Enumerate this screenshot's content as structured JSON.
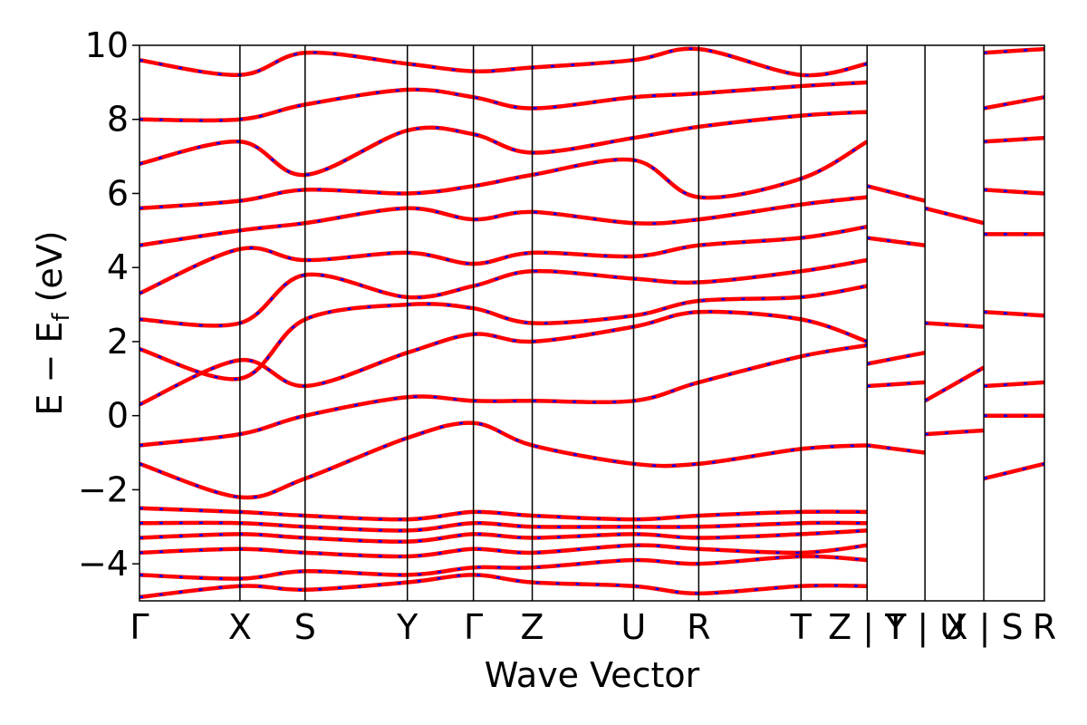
{
  "chart_data": {
    "type": "line",
    "title": "",
    "xlabel": "Wave Vector",
    "ylabel": "E − E",
    "ylabel_subscript": "f",
    "ylabel_unit": " (eV)",
    "ylim": [
      -5,
      10
    ],
    "yticks": [
      -4,
      -2,
      0,
      2,
      4,
      6,
      8,
      10
    ],
    "ytick_labels": [
      "−4",
      "−2",
      "0",
      "2",
      "4",
      "6",
      "8",
      "10"
    ],
    "grid": false,
    "legend": "none",
    "kpath": [
      {
        "label": "Γ",
        "k": 0.0
      },
      {
        "label": "X",
        "k": 1.11
      },
      {
        "label": "S",
        "k": 1.83
      },
      {
        "label": "Y",
        "k": 2.96
      },
      {
        "label": "Γ",
        "k": 3.69
      },
      {
        "label": "Z",
        "k": 4.34
      },
      {
        "label": "U",
        "k": 5.46
      },
      {
        "label": "R",
        "k": 6.18
      },
      {
        "label": "T",
        "k": 7.31
      },
      {
        "label": "Z | Y",
        "k": 8.04
      },
      {
        "label": "T | U",
        "k": 8.68
      },
      {
        "label": "X | S",
        "k": 9.33
      },
      {
        "label": "R",
        "k": 10.0
      }
    ],
    "xlim": [
      0,
      10.0
    ],
    "colors": {
      "solid": "#ff0000",
      "dashed": "#0000ff",
      "vlines": "#000000"
    },
    "series": [
      {
        "x": [
          0,
          1.11,
          1.83,
          2.96,
          3.69,
          4.34,
          5.46,
          6.18,
          7.31,
          8.04
        ],
        "y": [
          -4.9,
          -4.6,
          -4.7,
          -4.5,
          -4.3,
          -4.5,
          -4.6,
          -4.8,
          -4.6,
          -4.6
        ]
      },
      {
        "x": [
          0,
          1.11,
          1.83,
          2.96,
          3.69,
          4.34,
          5.46,
          6.18,
          7.31,
          8.04
        ],
        "y": [
          -4.3,
          -4.4,
          -4.2,
          -4.3,
          -4.1,
          -4.1,
          -3.9,
          -4.0,
          -3.8,
          -3.9
        ]
      },
      {
        "x": [
          0,
          1.11,
          1.83,
          2.96,
          3.69,
          4.34,
          5.46,
          6.18,
          7.31,
          8.04
        ],
        "y": [
          -3.7,
          -3.6,
          -3.7,
          -3.8,
          -3.6,
          -3.7,
          -3.5,
          -3.6,
          -3.7,
          -3.5
        ]
      },
      {
        "x": [
          0,
          1.11,
          1.83,
          2.96,
          3.69,
          4.34,
          5.46,
          6.18,
          7.31,
          8.04
        ],
        "y": [
          -3.3,
          -3.2,
          -3.3,
          -3.4,
          -3.2,
          -3.3,
          -3.2,
          -3.3,
          -3.2,
          -3.1
        ]
      },
      {
        "x": [
          0,
          1.11,
          1.83,
          2.96,
          3.69,
          4.34,
          5.46,
          6.18,
          7.31,
          8.04
        ],
        "y": [
          -2.9,
          -2.9,
          -3.0,
          -3.1,
          -2.9,
          -3.0,
          -3.0,
          -3.0,
          -2.9,
          -2.9
        ]
      },
      {
        "x": [
          0,
          1.11,
          1.83,
          2.96,
          3.69,
          4.34,
          5.46,
          6.18,
          7.31,
          8.04
        ],
        "y": [
          -2.5,
          -2.6,
          -2.7,
          -2.8,
          -2.6,
          -2.7,
          -2.8,
          -2.7,
          -2.6,
          -2.6
        ]
      },
      {
        "x": [
          0,
          1.11,
          1.83,
          2.96,
          3.69,
          4.34,
          5.46,
          6.18,
          7.31,
          8.04
        ],
        "y": [
          -1.3,
          -2.2,
          -1.7,
          -0.6,
          -0.2,
          -0.8,
          -1.3,
          -1.3,
          -0.9,
          -0.8
        ]
      },
      {
        "x": [
          0,
          1.11,
          1.83,
          2.96,
          3.69,
          4.34,
          5.46,
          6.18,
          7.31,
          8.04
        ],
        "y": [
          -0.8,
          -0.5,
          0.0,
          0.5,
          0.4,
          0.4,
          0.4,
          0.9,
          1.6,
          1.9
        ]
      },
      {
        "x": [
          0,
          1.11,
          1.83,
          2.96,
          3.69,
          4.34,
          5.46,
          6.18,
          7.31,
          8.04
        ],
        "y": [
          0.3,
          1.5,
          0.8,
          1.7,
          2.2,
          2.0,
          2.4,
          2.8,
          2.6,
          2.0
        ]
      },
      {
        "x": [
          0,
          1.11,
          1.83,
          2.96,
          3.69,
          4.34,
          5.46,
          6.18,
          7.31,
          8.04
        ],
        "y": [
          1.8,
          1.0,
          2.6,
          3.0,
          2.9,
          2.5,
          2.7,
          3.1,
          3.2,
          3.5
        ]
      },
      {
        "x": [
          0,
          1.11,
          1.83,
          2.96,
          3.69,
          4.34,
          5.46,
          6.18,
          7.31,
          8.04
        ],
        "y": [
          2.6,
          2.5,
          3.8,
          3.2,
          3.5,
          3.9,
          3.7,
          3.6,
          3.9,
          4.2
        ]
      },
      {
        "x": [
          0,
          1.11,
          1.83,
          2.96,
          3.69,
          4.34,
          5.46,
          6.18,
          7.31,
          8.04
        ],
        "y": [
          3.3,
          4.5,
          4.2,
          4.4,
          4.1,
          4.4,
          4.3,
          4.6,
          4.8,
          5.1
        ]
      },
      {
        "x": [
          0,
          1.11,
          1.83,
          2.96,
          3.69,
          4.34,
          5.46,
          6.18,
          7.31,
          8.04
        ],
        "y": [
          4.6,
          5.0,
          5.2,
          5.6,
          5.3,
          5.5,
          5.2,
          5.3,
          5.7,
          5.9
        ]
      },
      {
        "x": [
          0,
          1.11,
          1.83,
          2.96,
          3.69,
          4.34,
          5.46,
          6.18,
          7.31,
          8.04
        ],
        "y": [
          5.6,
          5.8,
          6.1,
          6.0,
          6.2,
          6.5,
          6.9,
          5.9,
          6.4,
          7.4
        ]
      },
      {
        "x": [
          0,
          1.11,
          1.83,
          2.96,
          3.69,
          4.34,
          5.46,
          6.18,
          7.31,
          8.04
        ],
        "y": [
          6.8,
          7.4,
          6.5,
          7.7,
          7.6,
          7.1,
          7.5,
          7.8,
          8.1,
          8.2
        ]
      },
      {
        "x": [
          0,
          1.11,
          1.83,
          2.96,
          3.69,
          4.34,
          5.46,
          6.18,
          7.31,
          8.04
        ],
        "y": [
          8.0,
          8.0,
          8.4,
          8.8,
          8.6,
          8.3,
          8.6,
          8.7,
          8.9,
          9.0
        ]
      },
      {
        "x": [
          0,
          1.11,
          1.83,
          2.96,
          3.69,
          4.34,
          5.46,
          6.18,
          7.31,
          8.04
        ],
        "y": [
          9.6,
          9.2,
          9.8,
          9.5,
          9.3,
          9.4,
          9.6,
          9.9,
          9.2,
          9.5
        ]
      },
      {
        "x": [
          8.04,
          8.68
        ],
        "y": [
          1.4,
          1.7
        ]
      },
      {
        "x": [
          8.04,
          8.68
        ],
        "y": [
          -0.8,
          -1.0
        ]
      },
      {
        "x": [
          8.04,
          8.68
        ],
        "y": [
          0.8,
          0.9
        ]
      },
      {
        "x": [
          8.04,
          8.68
        ],
        "y": [
          4.8,
          4.6
        ]
      },
      {
        "x": [
          8.04,
          8.68
        ],
        "y": [
          6.2,
          5.8
        ]
      },
      {
        "x": [
          8.68,
          9.33
        ],
        "y": [
          0.4,
          1.3
        ]
      },
      {
        "x": [
          8.68,
          9.33
        ],
        "y": [
          -0.5,
          -0.4
        ]
      },
      {
        "x": [
          8.68,
          9.33
        ],
        "y": [
          2.5,
          2.4
        ]
      },
      {
        "x": [
          8.68,
          9.33
        ],
        "y": [
          5.6,
          5.2
        ]
      },
      {
        "x": [
          9.33,
          10.0
        ],
        "y": [
          0.0,
          0.0
        ]
      },
      {
        "x": [
          9.33,
          10.0
        ],
        "y": [
          0.8,
          0.9
        ]
      },
      {
        "x": [
          9.33,
          10.0
        ],
        "y": [
          -1.7,
          -1.3
        ]
      },
      {
        "x": [
          9.33,
          10.0
        ],
        "y": [
          2.8,
          2.7
        ]
      },
      {
        "x": [
          9.33,
          10.0
        ],
        "y": [
          4.9,
          4.9
        ]
      },
      {
        "x": [
          9.33,
          10.0
        ],
        "y": [
          6.1,
          6.0
        ]
      },
      {
        "x": [
          9.33,
          10.0
        ],
        "y": [
          7.4,
          7.5
        ]
      },
      {
        "x": [
          9.33,
          10.0
        ],
        "y": [
          8.3,
          8.6
        ]
      },
      {
        "x": [
          9.33,
          10.0
        ],
        "y": [
          9.8,
          9.9
        ]
      }
    ]
  }
}
